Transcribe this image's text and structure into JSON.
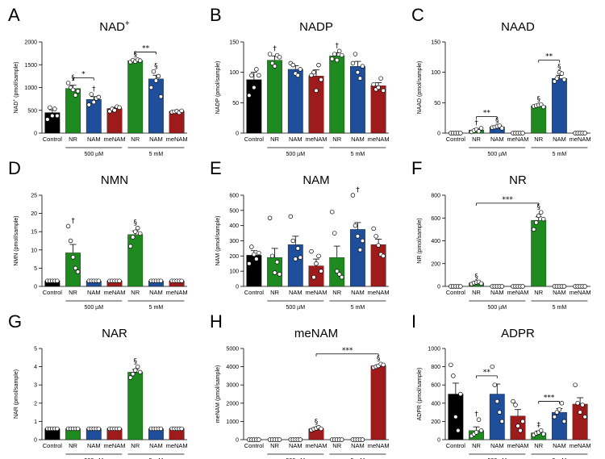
{
  "groups": {
    "low": "500 µM",
    "high": "5 mM"
  },
  "colors": {
    "Control": "#000000",
    "NR": "#1f8a1f",
    "NAM": "#1f4e9a",
    "meNAM": "#9e1b1b"
  },
  "chart_data": [
    {
      "id": "A",
      "title": "NAD+",
      "ylabel": "NAD+ (pmol/sample)",
      "type": "bar",
      "ylim": [
        0,
        2000
      ],
      "yticks": [
        0,
        500,
        1000,
        1500,
        2000
      ],
      "categories": [
        "Control",
        "NR",
        "NAM",
        "meNAM",
        "NR",
        "NAM",
        "meNAM"
      ],
      "values": [
        450,
        980,
        740,
        540,
        1590,
        1190,
        480
      ],
      "errors": [
        60,
        70,
        60,
        25,
        20,
        80,
        15
      ],
      "points": [
        [
          300,
          560,
          380,
          530,
          380
        ],
        [
          1100,
          1000,
          950,
          830,
          920
        ],
        [
          620,
          850,
          680,
          760,
          790
        ],
        [
          480,
          530,
          500,
          580,
          560
        ],
        [
          1560,
          1600,
          1570,
          1610,
          1590
        ],
        [
          1000,
          1350,
          1150,
          1250,
          800
        ],
        [
          460,
          470,
          480,
          450,
          490
        ]
      ],
      "symbols": [
        "",
        "§",
        "†",
        "",
        "§",
        "§",
        ""
      ],
      "brackets": [
        {
          "from": 1,
          "to": 2,
          "y": 1210,
          "label": "*"
        },
        {
          "from": 4,
          "to": 5,
          "y": 1780,
          "label": "**"
        }
      ]
    },
    {
      "id": "B",
      "title": "NADP",
      "ylabel": "NADP (pmol/sample)",
      "type": "bar",
      "ylim": [
        0,
        150
      ],
      "yticks": [
        0,
        50,
        100,
        150
      ],
      "categories": [
        "Control",
        "NR",
        "NAM",
        "meNAM",
        "NR",
        "NAM",
        "meNAM"
      ],
      "values": [
        88,
        120,
        105,
        94,
        127,
        110,
        78
      ],
      "errors": [
        12,
        7,
        6,
        10,
        5,
        8,
        5
      ],
      "points": [
        [
          62,
          95,
          75,
          105,
          95
        ],
        [
          130,
          115,
          110,
          128,
          125
        ],
        [
          115,
          112,
          98,
          95,
          105
        ],
        [
          95,
          100,
          70,
          112,
          88
        ],
        [
          122,
          130,
          120,
          135,
          128
        ],
        [
          115,
          130,
          100,
          90,
          110
        ],
        [
          80,
          72,
          75,
          90,
          70
        ]
      ],
      "symbols": [
        "",
        "†",
        "",
        "",
        "†",
        "",
        ""
      ],
      "brackets": []
    },
    {
      "id": "C",
      "title": "NAAD",
      "ylabel": "NAAD (pmol/sample)",
      "type": "bar",
      "ylim": [
        0,
        150
      ],
      "yticks": [
        0,
        50,
        100,
        150
      ],
      "categories": [
        "Control",
        "NR",
        "NAM",
        "meNAM",
        "NR",
        "NAM",
        "meNAM"
      ],
      "values": [
        0,
        5,
        10,
        0,
        45,
        90,
        0
      ],
      "errors": [
        0,
        2,
        1.5,
        0,
        2,
        5,
        0
      ],
      "points": [
        [
          0,
          0,
          0,
          0,
          0
        ],
        [
          2,
          4,
          6,
          3,
          8
        ],
        [
          9,
          10,
          11,
          12,
          8
        ],
        [
          0,
          0,
          0,
          0,
          0
        ],
        [
          44,
          45,
          46,
          47,
          43
        ],
        [
          85,
          90,
          100,
          98,
          88
        ],
        [
          0,
          0,
          0,
          0,
          0
        ]
      ],
      "symbols": [
        "",
        "†",
        "§",
        "",
        "§",
        "§",
        ""
      ],
      "brackets": [
        {
          "from": 1,
          "to": 2,
          "y": 27,
          "label": "**"
        },
        {
          "from": 4,
          "to": 5,
          "y": 120,
          "label": "**"
        }
      ]
    },
    {
      "id": "D",
      "title": "NMN",
      "ylabel": "NMN (pmol/sample)",
      "type": "bar",
      "ylim": [
        0,
        25
      ],
      "yticks": [
        0,
        5,
        10,
        15,
        20,
        25
      ],
      "categories": [
        "Control",
        "NR",
        "NAM",
        "meNAM",
        "NR",
        "NAM",
        "meNAM"
      ],
      "values": [
        1.5,
        9.2,
        1.5,
        1.5,
        14.2,
        1.5,
        1.5
      ],
      "errors": [
        0,
        2.3,
        0,
        0,
        1,
        0,
        0
      ],
      "points": [
        [
          1.5,
          1.5,
          1.5,
          1.5,
          1.5
        ],
        [
          16.5,
          12.5,
          8,
          5,
          4
        ],
        [
          1.5,
          1.5,
          1.5,
          1.5,
          1.5
        ],
        [
          1.5,
          1.5,
          1.5,
          1.5,
          1.5
        ],
        [
          11,
          13.5,
          15,
          16,
          14.5
        ],
        [
          1.5,
          1.5,
          1.5,
          1.5,
          1.5
        ],
        [
          1.5,
          1.5,
          1.5,
          1.5,
          1.5
        ]
      ],
      "symbols": [
        "",
        "†",
        "",
        "",
        "§",
        "",
        ""
      ],
      "brackets": []
    },
    {
      "id": "E",
      "title": "NAM",
      "ylabel": "NAM (pmol/sample)",
      "type": "bar",
      "ylim": [
        0,
        600
      ],
      "yticks": [
        0,
        100,
        200,
        300,
        400,
        500,
        600
      ],
      "categories": [
        "Control",
        "NR",
        "NAM",
        "meNAM",
        "NR",
        "NAM",
        "meNAM"
      ],
      "values": [
        205,
        190,
        275,
        135,
        190,
        375,
        275
      ],
      "errors": [
        30,
        60,
        55,
        45,
        75,
        45,
        35
      ],
      "points": [
        [
          150,
          260,
          210,
          180,
          220
        ],
        [
          450,
          200,
          90,
          160,
          80
        ],
        [
          460,
          300,
          180,
          250,
          190
        ],
        [
          230,
          60,
          150,
          200,
          100
        ],
        [
          490,
          350,
          100,
          80,
          60
        ],
        [
          600,
          400,
          330,
          240,
          300
        ],
        [
          380,
          330,
          270,
          210,
          200
        ]
      ],
      "symbols": [
        "",
        "",
        "",
        "",
        "",
        "†",
        ""
      ],
      "brackets": []
    },
    {
      "id": "F",
      "title": "NR",
      "ylabel": "NR (pmol/sample)",
      "type": "bar",
      "ylim": [
        0,
        800
      ],
      "yticks": [
        0,
        200,
        400,
        600,
        800
      ],
      "categories": [
        "Control",
        "NR",
        "NAM",
        "meNAM",
        "NR",
        "NAM",
        "meNAM"
      ],
      "values": [
        0,
        30,
        0,
        0,
        580,
        0,
        0
      ],
      "errors": [
        0,
        8,
        0,
        0,
        30,
        0,
        0
      ],
      "points": [
        [
          0,
          0,
          0,
          0,
          0
        ],
        [
          20,
          30,
          35,
          40,
          25
        ],
        [
          0,
          0,
          0,
          0,
          0
        ],
        [
          0,
          0,
          0,
          0,
          0
        ],
        [
          500,
          560,
          620,
          650,
          590
        ],
        [
          0,
          0,
          0,
          0,
          0
        ],
        [
          0,
          0,
          0,
          0,
          0
        ]
      ],
      "symbols": [
        "",
        "§",
        "",
        "",
        "§",
        "",
        ""
      ],
      "brackets": [
        {
          "from": 1,
          "to": 4,
          "y": 730,
          "label": "***"
        }
      ]
    },
    {
      "id": "G",
      "title": "NAR",
      "ylabel": "NAR (pmol/sample)",
      "type": "bar",
      "ylim": [
        0,
        5
      ],
      "yticks": [
        0,
        1,
        2,
        3,
        4,
        5
      ],
      "categories": [
        "Control",
        "NR",
        "NAM",
        "meNAM",
        "NR",
        "NAM",
        "meNAM"
      ],
      "values": [
        0.6,
        0.6,
        0.6,
        0.6,
        3.7,
        0.6,
        0.6
      ],
      "errors": [
        0,
        0,
        0,
        0,
        0.15,
        0,
        0
      ],
      "points": [
        [
          0.6,
          0.6,
          0.6,
          0.6,
          0.6
        ],
        [
          0.6,
          0.6,
          0.6,
          0.6,
          0.6
        ],
        [
          0.6,
          0.6,
          0.6,
          0.6,
          0.6
        ],
        [
          0.6,
          0.6,
          0.6,
          0.6,
          0.6
        ],
        [
          3.4,
          3.6,
          3.8,
          4.0,
          3.7
        ],
        [
          0.6,
          0.6,
          0.6,
          0.6,
          0.6
        ],
        [
          0.6,
          0.6,
          0.6,
          0.6,
          0.6
        ]
      ],
      "symbols": [
        "",
        "",
        "",
        "",
        "§",
        "",
        ""
      ],
      "brackets": []
    },
    {
      "id": "H",
      "title": "meNAM",
      "ylabel": "meNAM (pmol/sample)",
      "type": "bar",
      "ylim": [
        0,
        5000
      ],
      "yticks": [
        0,
        1000,
        2000,
        3000,
        4000,
        5000
      ],
      "categories": [
        "Control",
        "NR",
        "NAM",
        "meNAM",
        "NR",
        "NAM",
        "meNAM"
      ],
      "values": [
        0,
        0,
        0,
        600,
        0,
        0,
        4050
      ],
      "errors": [
        0,
        0,
        0,
        60,
        0,
        0,
        60
      ],
      "points": [
        [
          0,
          0,
          0,
          0,
          0
        ],
        [
          0,
          0,
          0,
          0,
          0
        ],
        [
          0,
          0,
          0,
          0,
          0
        ],
        [
          520,
          580,
          620,
          680,
          600
        ],
        [
          0,
          0,
          0,
          0,
          0
        ],
        [
          0,
          0,
          0,
          0,
          0
        ],
        [
          3950,
          4000,
          4050,
          4150,
          4100
        ]
      ],
      "symbols": [
        "",
        "",
        "",
        "§",
        "",
        "",
        "§"
      ],
      "brackets": [
        {
          "from": 3,
          "to": 6,
          "y": 4700,
          "label": "***"
        }
      ]
    },
    {
      "id": "I",
      "title": "ADPR",
      "ylabel": "ADPR (pmol/sample)",
      "type": "bar",
      "ylim": [
        0,
        1000
      ],
      "yticks": [
        0,
        200,
        400,
        600,
        800,
        1000
      ],
      "categories": [
        "Control",
        "NR",
        "NAM",
        "meNAM",
        "NR",
        "NAM",
        "meNAM"
      ],
      "values": [
        500,
        100,
        500,
        260,
        75,
        300,
        390
      ],
      "errors": [
        120,
        40,
        110,
        70,
        20,
        40,
        70
      ],
      "points": [
        [
          820,
          700,
          250,
          100,
          500
        ],
        [
          40,
          60,
          80,
          220,
          100
        ],
        [
          800,
          600,
          420,
          300,
          200
        ],
        [
          420,
          380,
          150,
          100,
          200
        ],
        [
          50,
          70,
          80,
          100,
          60
        ],
        [
          250,
          300,
          330,
          400,
          200
        ],
        [
          600,
          400,
          300,
          380,
          250
        ]
      ],
      "symbols": [
        "",
        "†",
        "",
        "",
        "‡",
        "",
        ""
      ],
      "brackets": [
        {
          "from": 1,
          "to": 2,
          "y": 700,
          "label": "**"
        },
        {
          "from": 4,
          "to": 5,
          "y": 420,
          "label": "***"
        }
      ]
    }
  ]
}
